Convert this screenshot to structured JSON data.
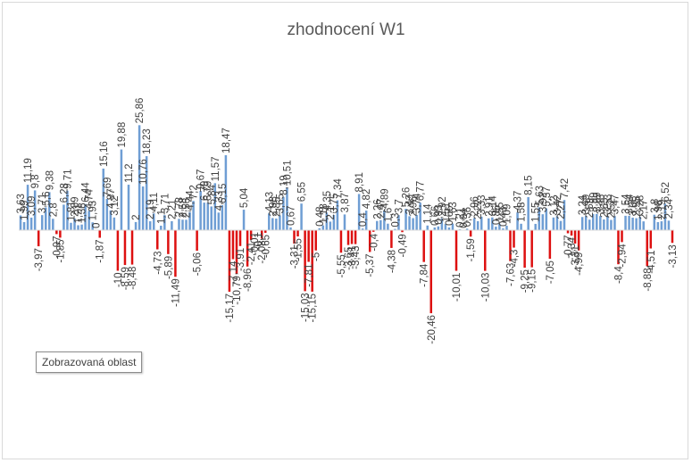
{
  "chart_data": {
    "type": "bar",
    "title": "zhodnocení W1",
    "colors": {
      "positive": "#6f9ed4",
      "negative": "#dd1010"
    },
    "values": [
      3.63,
      1.99,
      11.19,
      3.09,
      9.8,
      -3.97,
      3.71,
      5.6,
      9.38,
      2.8,
      -0.97,
      -1.85,
      6.28,
      9.71,
      1.81,
      2.89,
      1.21,
      1.38,
      6.44,
      4.74,
      1.93,
      0,
      -1.87,
      15.16,
      7.69,
      4.87,
      3.12,
      -10,
      19.88,
      -8.59,
      11.2,
      -8.48,
      2,
      25.86,
      10.76,
      18.23,
      2.19,
      4.11,
      -4.73,
      1.1,
      3.71,
      -5.89,
      2.21,
      -11.49,
      2.78,
      2.58,
      2.56,
      4.44,
      7.2,
      -5.06,
      9.67,
      6.79,
      6.79,
      5.84,
      11.57,
      4.33,
      6.15,
      18.47,
      -15.17,
      -7.14,
      -10.79,
      -3.91,
      5.04,
      -8.96,
      -2.41,
      -0.01,
      -0.1,
      -2.08,
      -0.65,
      4.13,
      2.98,
      2.85,
      3.65,
      8.19,
      10.51,
      0.67,
      -3.31,
      -1.55,
      6.55,
      -15.03,
      -7.81,
      -15.15,
      -5,
      0.48,
      1.18,
      4.35,
      2.1,
      3.75,
      7.34,
      -5.55,
      3.87,
      -3.65,
      -3.41,
      -3.43,
      8.91,
      0.4,
      4.82,
      -5.37,
      -0.4,
      2.26,
      2.47,
      4.89,
      1.6,
      -4.38,
      0.3,
      3.7,
      -0.49,
      5.26,
      3.43,
      2.96,
      3.74,
      6.77,
      -7.84,
      1.14,
      -20.46,
      0.66,
      0.93,
      2.92,
      1.51,
      0.66,
      1.63,
      -10.01,
      0.21,
      0.04,
      0.36,
      -1.59,
      2.96,
      2.22,
      3.33,
      -10.03,
      2.91,
      3.14,
      0.86,
      1.55,
      0.43,
      1.09,
      -7.63,
      -4.3,
      4.37,
      1.58,
      -9.25,
      8.15,
      -9.15,
      1.55,
      5.63,
      3.92,
      5.37,
      -7.05,
      3.12,
      3.42,
      2.27,
      7.42,
      -0.77,
      -1.34,
      -3.31,
      -4.99,
      3.24,
      3.49,
      2.59,
      3.99,
      3.99,
      3.48,
      2.63,
      3.53,
      2.52,
      3.47,
      -8.4,
      -2.94,
      3.54,
      3.54,
      3.08,
      2.95,
      3.28,
      2.17,
      -8.88,
      -4.51,
      3.8,
      1.98,
      2.19,
      6.52,
      2.34,
      -3.13
    ],
    "ylim": [
      -26,
      27
    ],
    "xlabel": "",
    "ylabel": "",
    "grid": false,
    "legend": "none"
  },
  "tooltip": {
    "text": "Zobrazovaná oblast"
  }
}
